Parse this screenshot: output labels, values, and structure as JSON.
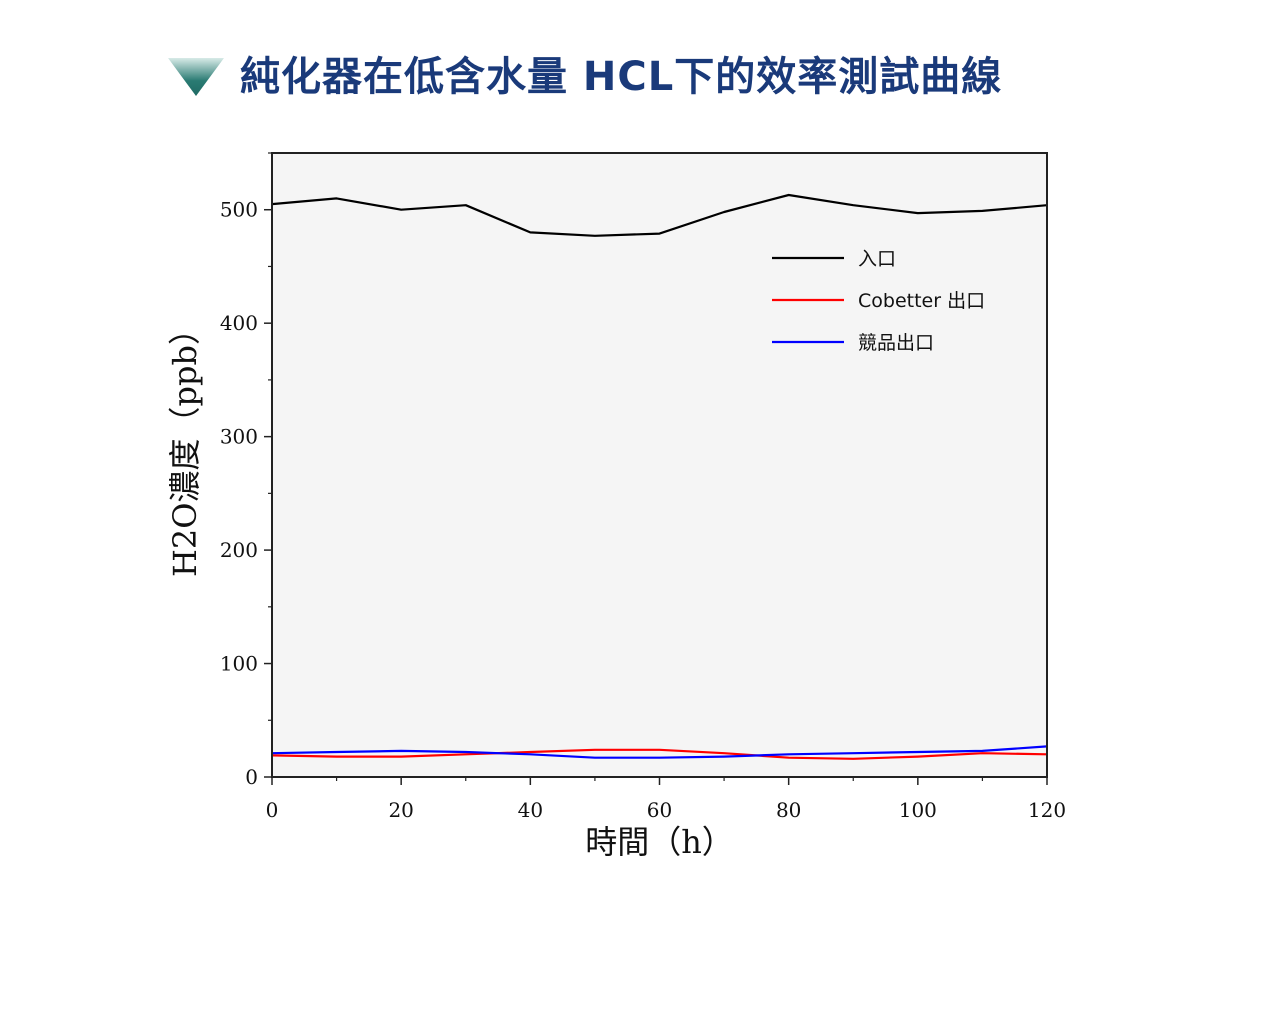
{
  "header": {
    "title": "純化器在低含水量 HCL下的效率測試曲線",
    "icon": "down-triangle-icon",
    "title_color": "#1a3a7a",
    "icon_color": "#2a7b73"
  },
  "chart_data": {
    "type": "line",
    "xlabel": "時間（h）",
    "ylabel": "H2O濃度（ppb）",
    "xlim": [
      0,
      120
    ],
    "ylim": [
      0,
      550
    ],
    "x_ticks": [
      0,
      20,
      40,
      60,
      80,
      100,
      120
    ],
    "y_ticks": [
      0,
      100,
      200,
      300,
      400,
      500
    ],
    "grid": false,
    "legend_position": "top-right",
    "background_color": "#f5f5f5",
    "series": [
      {
        "name": "入口",
        "color": "#000000",
        "x": [
          0,
          10,
          20,
          30,
          40,
          50,
          60,
          70,
          80,
          90,
          100,
          110,
          120
        ],
        "values": [
          505,
          510,
          500,
          504,
          480,
          477,
          479,
          498,
          513,
          504,
          497,
          499,
          504
        ]
      },
      {
        "name": "Cobetter 出口",
        "color": "#ff0000",
        "x": [
          0,
          10,
          20,
          30,
          40,
          50,
          60,
          70,
          80,
          90,
          100,
          110,
          120
        ],
        "values": [
          19,
          18,
          18,
          20,
          22,
          24,
          24,
          21,
          17,
          16,
          18,
          21,
          20
        ]
      },
      {
        "name": "競品出口",
        "color": "#0000ff",
        "x": [
          0,
          10,
          20,
          30,
          40,
          50,
          60,
          70,
          80,
          90,
          100,
          110,
          120
        ],
        "values": [
          21,
          22,
          23,
          22,
          20,
          17,
          17,
          18,
          20,
          21,
          22,
          23,
          27
        ]
      }
    ]
  }
}
